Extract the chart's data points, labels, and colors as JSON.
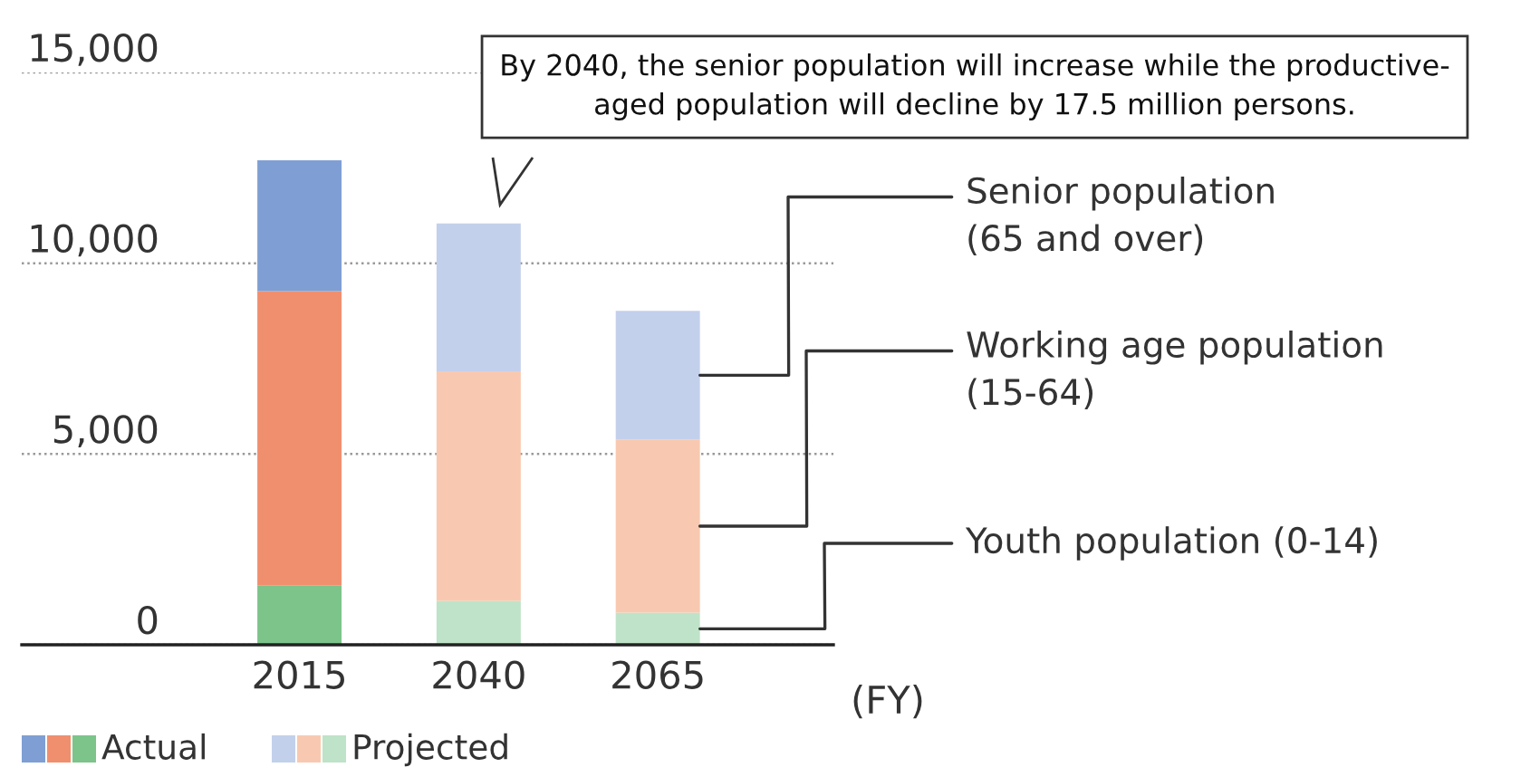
{
  "chart_data": {
    "type": "bar",
    "stacked": true,
    "categories": [
      "2015",
      "2040",
      "2065"
    ],
    "series": [
      {
        "name": "Youth population (0-14)",
        "colors": [
          "#7cc48a",
          "#bfe3c8",
          "#bfe3c8"
        ],
        "values": [
          1550,
          1150,
          840
        ]
      },
      {
        "name": "Working age population\n(15-64)",
        "colors": [
          "#f08f6e",
          "#f8c9b0",
          "#f8c9b0"
        ],
        "values": [
          7720,
          6020,
          4540
        ]
      },
      {
        "name": "Senior population\n(65 and over)",
        "colors": [
          "#7f9fd4",
          "#c3d0ec",
          "#c3d0ec"
        ],
        "values": [
          3430,
          3870,
          3370
        ]
      }
    ],
    "xlabel": "(FY)",
    "ylim": [
      0,
      15000
    ],
    "yticks": [
      0,
      {
        "value": 5000,
        "label": "5,000"
      },
      {
        "value": 10000,
        "label": "10,000"
      },
      {
        "value": 15000,
        "label": "15,000"
      }
    ],
    "grid": "y",
    "annotations": [
      "By 2040, the senior population will increase while the productive-\naged population will decline by 17.5 million persons.",
      "Actual",
      "Projected"
    ]
  }
}
